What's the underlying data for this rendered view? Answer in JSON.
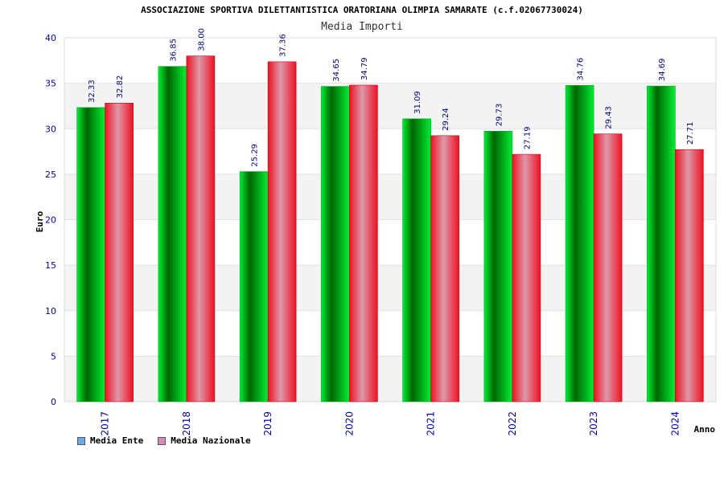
{
  "chart_data": {
    "type": "bar",
    "title": "ASSOCIAZIONE SPORTIVA DILETTANTISTICA ORATORIANA OLIMPIA SAMARATE (c.f.02067730024)",
    "subtitle": "Media Importi",
    "xlabel": "Anno",
    "ylabel": "Euro",
    "ylim": [
      0,
      40
    ],
    "yticks": [
      0,
      5,
      10,
      15,
      20,
      25,
      30,
      35,
      40
    ],
    "grid": true,
    "legend_position": "bottom-left",
    "categories": [
      "2017",
      "2018",
      "2019",
      "2020",
      "2021",
      "2022",
      "2023",
      "2024"
    ],
    "series": [
      {
        "name": "Media Ente",
        "values": [
          32.33,
          36.85,
          25.29,
          34.65,
          31.09,
          29.73,
          34.76,
          34.69
        ],
        "labels": [
          "32.33",
          "36.85",
          "25.29",
          "34.65",
          "31.09",
          "29.73",
          "34.76",
          "34.69"
        ],
        "color": "#00cc33",
        "legend_color": "#66aaee"
      },
      {
        "name": "Media Nazionale",
        "values": [
          32.82,
          38.0,
          37.36,
          34.79,
          29.24,
          27.19,
          29.43,
          27.71
        ],
        "labels": [
          "32.82",
          "38.00",
          "37.36",
          "34.79",
          "29.24",
          "27.19",
          "29.43",
          "27.71"
        ],
        "color": "#ee1122",
        "legend_color": "#dd88bb"
      }
    ]
  }
}
